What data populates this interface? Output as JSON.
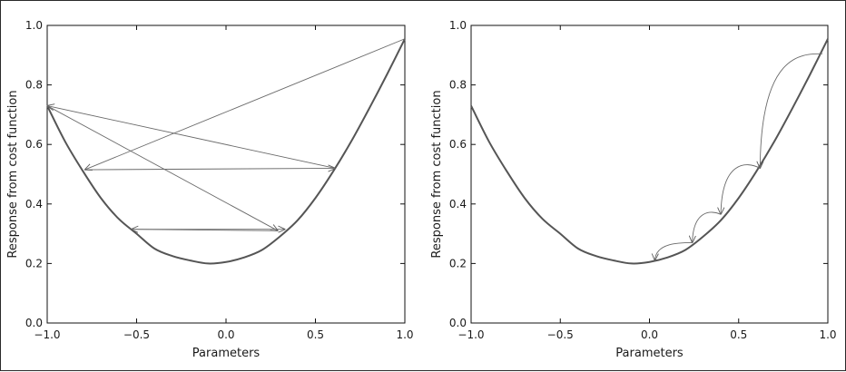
{
  "chart_data": [
    {
      "type": "line",
      "title": "",
      "xlabel": "Parameters",
      "ylabel": "Response from cost function",
      "xlim": [
        -1.0,
        1.0
      ],
      "ylim": [
        0.0,
        1.0
      ],
      "x_ticks": [
        "−1.0",
        "−0.5",
        "0.0",
        "0.5",
        "1.0"
      ],
      "y_ticks": [
        "0.0",
        "0.2",
        "0.4",
        "0.6",
        "0.8",
        "1.0"
      ],
      "grid": false,
      "curve": {
        "x": [
          -1.0,
          -0.9,
          -0.8,
          -0.7,
          -0.6,
          -0.5,
          -0.4,
          -0.3,
          -0.2,
          -0.1,
          0.0,
          0.1,
          0.2,
          0.3,
          0.4,
          0.5,
          0.6,
          0.7,
          0.8,
          0.9,
          1.0
        ],
        "y": [
          0.73,
          0.61,
          0.51,
          0.42,
          0.35,
          0.3,
          0.25,
          0.225,
          0.21,
          0.2,
          0.205,
          0.22,
          0.245,
          0.29,
          0.345,
          0.42,
          0.51,
          0.61,
          0.72,
          0.835,
          0.955
        ]
      },
      "arrows": [
        {
          "from": [
            1.0,
            0.955
          ],
          "to": [
            -0.79,
            0.515
          ],
          "style": "straight"
        },
        {
          "from": [
            -0.79,
            0.515
          ],
          "to": [
            0.61,
            0.52
          ],
          "style": "straight"
        },
        {
          "from": [
            0.61,
            0.52
          ],
          "to": [
            -1.0,
            0.73
          ],
          "style": "straight"
        },
        {
          "from": [
            -1.0,
            0.73
          ],
          "to": [
            0.29,
            0.31
          ],
          "style": "straight"
        },
        {
          "from": [
            0.29,
            0.31
          ],
          "to": [
            -0.53,
            0.315
          ],
          "style": "straight"
        },
        {
          "from": [
            -0.53,
            0.315
          ],
          "to": [
            0.33,
            0.315
          ],
          "style": "straight"
        }
      ]
    },
    {
      "type": "line",
      "title": "",
      "xlabel": "Parameters",
      "ylabel": "Response from cost function",
      "xlim": [
        -1.0,
        1.0
      ],
      "ylim": [
        0.0,
        1.0
      ],
      "x_ticks": [
        "−1.0",
        "−0.5",
        "0.0",
        "0.5",
        "1.0"
      ],
      "y_ticks": [
        "0.0",
        "0.2",
        "0.4",
        "0.6",
        "0.8",
        "1.0"
      ],
      "grid": false,
      "curve": {
        "x": [
          -1.0,
          -0.9,
          -0.8,
          -0.7,
          -0.6,
          -0.5,
          -0.4,
          -0.3,
          -0.2,
          -0.1,
          0.0,
          0.1,
          0.2,
          0.3,
          0.4,
          0.5,
          0.6,
          0.7,
          0.8,
          0.9,
          1.0
        ],
        "y": [
          0.73,
          0.61,
          0.51,
          0.42,
          0.35,
          0.3,
          0.25,
          0.225,
          0.21,
          0.2,
          0.205,
          0.22,
          0.245,
          0.29,
          0.345,
          0.42,
          0.51,
          0.61,
          0.72,
          0.835,
          0.955
        ]
      },
      "arrows": [
        {
          "from": [
            0.97,
            0.905
          ],
          "to": [
            0.62,
            0.52
          ],
          "style": "curved",
          "peak": 0.905
        },
        {
          "from": [
            0.62,
            0.52
          ],
          "to": [
            0.4,
            0.365
          ],
          "style": "curved",
          "peak": 0.545
        },
        {
          "from": [
            0.4,
            0.365
          ],
          "to": [
            0.24,
            0.27
          ],
          "style": "curved",
          "peak": 0.38
        },
        {
          "from": [
            0.24,
            0.27
          ],
          "to": [
            0.03,
            0.21
          ],
          "style": "curved",
          "peak": 0.27
        }
      ]
    }
  ]
}
